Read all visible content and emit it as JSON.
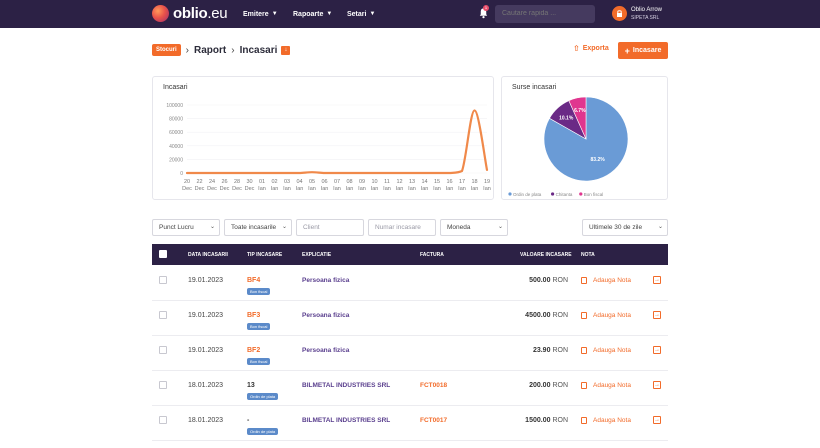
{
  "topbar": {
    "logo_text": "oblio",
    "logo_suffix": ".eu",
    "nav": [
      {
        "label": "Emitere"
      },
      {
        "label": "Rapoarte"
      },
      {
        "label": "Setari"
      }
    ],
    "notification_count": "1",
    "search_placeholder": "Cautare rapida ...",
    "user_name": "Oblio Arrow",
    "user_company": "SIPETA SRL"
  },
  "page": {
    "badge": "Stocuri",
    "breadcrumb": [
      "Raport",
      "Incasari"
    ],
    "export_label": "Exporta",
    "add_label": "Incasare"
  },
  "chart_data": [
    {
      "type": "line",
      "title": "Incasari",
      "x": [
        "20 Dec",
        "22 Dec",
        "24 Dec",
        "26 Dec",
        "28 Dec",
        "30 Dec",
        "01 Ian",
        "02 Ian",
        "03 Ian",
        "04 Ian",
        "05 Ian",
        "06 Ian",
        "07 Ian",
        "08 Ian",
        "09 Ian",
        "10 Ian",
        "11 Ian",
        "12 Ian",
        "13 Ian",
        "14 Ian",
        "15 Ian",
        "16 Ian",
        "17 Ian",
        "18 Ian",
        "19 Ian"
      ],
      "series": [
        {
          "values": [
            0,
            0,
            0,
            0,
            0,
            0,
            0,
            0,
            0,
            0,
            1200,
            0,
            0,
            0,
            0,
            0,
            0,
            0,
            0,
            0,
            0,
            0,
            3000,
            92000,
            4500
          ]
        }
      ],
      "yticks": [
        0,
        20000,
        40000,
        60000,
        80000,
        100000
      ],
      "ylim": [
        0,
        100000
      ],
      "color": "#f0894a"
    },
    {
      "type": "pie",
      "title": "Surse incasari",
      "slices": [
        {
          "name": "Ordin de plata",
          "value": 83.2,
          "label": "83.2%",
          "color": "#6a9bd6"
        },
        {
          "name": "Chitanta",
          "value": 10.1,
          "label": "10.1%",
          "color": "#6b2a86"
        },
        {
          "name": "Bon fiscal",
          "value": 6.7,
          "label": "6.7%",
          "color": "#e0368f"
        }
      ],
      "legend": "bottom"
    }
  ],
  "filters": {
    "punct_lucru": "Punct Lucru",
    "tip": "Toate incasarile",
    "client_placeholder": "Client",
    "numar_placeholder": "Numar incasare",
    "moneda": "Moneda",
    "period": "Ultimele 30 de zile"
  },
  "table": {
    "headers": {
      "date": "DATA INCASARII",
      "tip": "TIP INCASARE",
      "expl": "EXPLICATIE",
      "fact": "FACTURA",
      "val": "VALOARE INCASARE",
      "nota": "NOTA"
    },
    "rows": [
      {
        "date": "19.01.2023",
        "tip": "BF4",
        "tip_color": "orange",
        "pill": "Bon fiscal",
        "expl": "Persoana fizica",
        "fact": "",
        "val": "500.00",
        "cur": "RON",
        "nota": "Adauga Nota"
      },
      {
        "date": "19.01.2023",
        "tip": "BF3",
        "tip_color": "orange",
        "pill": "Bon fiscal",
        "expl": "Persoana fizica",
        "fact": "",
        "val": "4500.00",
        "cur": "RON",
        "nota": "Adauga Nota"
      },
      {
        "date": "19.01.2023",
        "tip": "BF2",
        "tip_color": "orange",
        "pill": "Bon fiscal",
        "expl": "Persoana fizica",
        "fact": "",
        "val": "23.90",
        "cur": "RON",
        "nota": "Adauga Nota"
      },
      {
        "date": "18.01.2023",
        "tip": "13",
        "tip_color": "dark",
        "pill": "Ordin de plata",
        "expl": "BILMETAL INDUSTRIES SRL",
        "fact": "FCT0018",
        "val": "200.00",
        "cur": "RON",
        "nota": "Adauga Nota"
      },
      {
        "date": "18.01.2023",
        "tip": "-",
        "tip_color": "dark",
        "pill": "Ordin de plata",
        "expl": "BILMETAL INDUSTRIES SRL",
        "fact": "FCT0017",
        "val": "1500.00",
        "cur": "RON",
        "nota": "Adauga Nota"
      }
    ]
  }
}
